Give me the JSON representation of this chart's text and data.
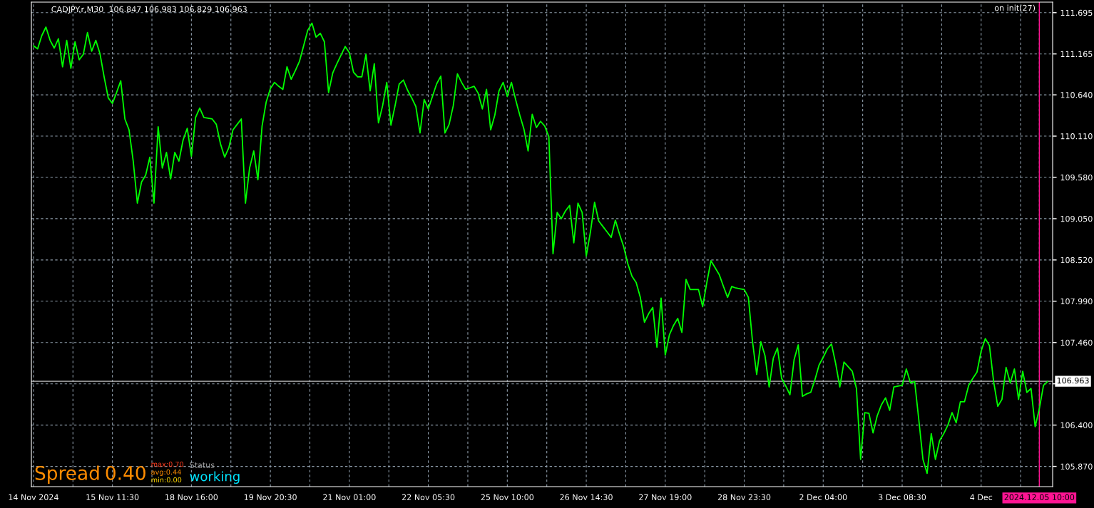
{
  "chart_data": {
    "type": "line",
    "title": "CADJPY.r,M30  106.847 106.983 106.829 106.963",
    "color": "#00ff00",
    "categories": [
      "14 Nov 2024",
      null,
      null,
      null,
      null,
      null,
      null,
      null,
      null,
      null,
      null,
      null,
      null,
      null,
      null,
      null,
      null,
      null,
      null,
      "15 Nov 11:30",
      null,
      null,
      null,
      null,
      null,
      null,
      null,
      null,
      null,
      null,
      null,
      null,
      null,
      null,
      null,
      null,
      null,
      null,
      "18 Nov 16:00",
      null,
      null,
      null,
      null,
      null,
      null,
      null,
      null,
      null,
      null,
      null,
      null,
      null,
      null,
      null,
      null,
      null,
      null,
      "19 Nov 20:30",
      null,
      null,
      null,
      null,
      null,
      null,
      null,
      null,
      null,
      null,
      null,
      null,
      null,
      null,
      null,
      null,
      null,
      null,
      "21 Nov 01:00",
      null,
      null,
      null,
      null,
      null,
      null,
      null,
      null,
      null,
      null,
      null,
      null,
      null,
      null,
      null,
      null,
      null,
      null,
      "22 Nov 05:30",
      null,
      null,
      null,
      null,
      null,
      null,
      null,
      null,
      null,
      null,
      null,
      null,
      null,
      null,
      null,
      null,
      null,
      null,
      "25 Nov 10:00",
      null,
      null,
      null,
      null,
      null,
      null,
      null,
      null,
      null,
      null,
      null,
      null,
      null,
      null,
      null,
      null,
      null,
      null,
      "26 Nov 14:30",
      null,
      null,
      null,
      null,
      null,
      null,
      null,
      null,
      null,
      null,
      null,
      null,
      null,
      null,
      null,
      null,
      null,
      null,
      "27 Nov 19:00",
      null,
      null,
      null,
      null,
      null,
      null,
      null,
      null,
      null,
      null,
      null,
      null,
      null,
      null,
      null,
      null,
      null,
      null,
      "28 Nov 23:30",
      null,
      null,
      null,
      null,
      null,
      null,
      null,
      null,
      null,
      null,
      null,
      null,
      null,
      null,
      null,
      null,
      null,
      null,
      "2 Dec 04:00",
      null,
      null,
      null,
      null,
      null,
      null,
      null,
      null,
      null,
      null,
      null,
      null,
      null,
      null,
      null,
      null,
      null,
      null,
      "3 Dec 08:30",
      null,
      null,
      null,
      null,
      null,
      null,
      null,
      null,
      null,
      null,
      null,
      null,
      null,
      null,
      null,
      null,
      null,
      null,
      "4 Dec",
      null,
      null,
      null,
      null,
      null,
      null,
      null,
      null,
      null,
      null,
      null,
      null,
      null,
      "2024.12.05 10:00",
      null,
      null
    ],
    "values": [
      111.27,
      111.23,
      111.4,
      111.51,
      111.34,
      111.24,
      111.36,
      111.0,
      111.34,
      110.98,
      111.32,
      111.09,
      111.16,
      111.44,
      111.2,
      111.34,
      111.17,
      110.87,
      110.6,
      110.53,
      110.67,
      110.82,
      110.33,
      110.19,
      109.79,
      109.25,
      109.52,
      109.61,
      109.84,
      109.25,
      110.23,
      109.7,
      109.9,
      109.56,
      109.9,
      109.79,
      110.06,
      110.21,
      109.85,
      110.35,
      110.47,
      110.35,
      110.34,
      110.33,
      110.26,
      110.01,
      109.84,
      109.96,
      110.19,
      110.26,
      110.33,
      109.25,
      109.7,
      109.92,
      109.55,
      110.24,
      110.55,
      110.72,
      110.8,
      110.75,
      110.71,
      111.0,
      110.84,
      110.95,
      111.07,
      111.27,
      111.47,
      111.56,
      111.38,
      111.43,
      111.32,
      110.67,
      110.92,
      111.04,
      111.15,
      111.26,
      111.18,
      110.93,
      110.87,
      110.87,
      111.16,
      110.69,
      111.04,
      110.28,
      110.5,
      110.8,
      110.25,
      110.5,
      110.78,
      110.83,
      110.7,
      110.6,
      110.49,
      110.15,
      110.58,
      110.46,
      110.62,
      110.78,
      110.88,
      110.15,
      110.26,
      110.5,
      110.91,
      110.8,
      110.71,
      110.73,
      110.75,
      110.66,
      110.46,
      110.71,
      110.19,
      110.38,
      110.69,
      110.8,
      110.62,
      110.8,
      110.58,
      110.38,
      110.2,
      109.92,
      110.39,
      110.22,
      110.3,
      110.24,
      110.1,
      108.6,
      109.13,
      109.05,
      109.15,
      109.22,
      108.74,
      109.25,
      109.13,
      108.57,
      108.88,
      109.26,
      109.02,
      108.95,
      108.88,
      108.81,
      109.03,
      108.85,
      108.69,
      108.47,
      108.31,
      108.23,
      108.04,
      107.72,
      107.83,
      107.91,
      107.4,
      108.03,
      107.3,
      107.56,
      107.68,
      107.77,
      107.59,
      108.27,
      108.14,
      108.14,
      108.14,
      107.92,
      108.23,
      108.51,
      108.42,
      108.33,
      108.18,
      108.04,
      108.18,
      108.16,
      108.15,
      108.14,
      108.04,
      107.47,
      107.05,
      107.47,
      107.29,
      106.89,
      107.26,
      107.39,
      107.0,
      106.9,
      106.79,
      107.24,
      107.43,
      106.77,
      106.8,
      106.82,
      106.98,
      107.17,
      107.27,
      107.38,
      107.44,
      107.19,
      106.89,
      107.21,
      107.15,
      107.09,
      106.87,
      105.96,
      106.56,
      106.55,
      106.3,
      106.52,
      106.66,
      106.75,
      106.59,
      106.89,
      106.9,
      106.91,
      107.12,
      106.94,
      106.96,
      106.47,
      105.96,
      105.78,
      106.29,
      105.96,
      106.2,
      106.29,
      106.4,
      106.56,
      106.43,
      106.7,
      106.7,
      106.91,
      107.0,
      107.08,
      107.35,
      107.51,
      107.42,
      106.96,
      106.64,
      106.73,
      107.14,
      106.94,
      107.12,
      106.73,
      107.09,
      106.82,
      106.87,
      106.38,
      106.61,
      106.91,
      106.96
    ],
    "ylim": [
      105.61,
      111.83
    ],
    "yticks": [
      {
        "value": 105.87,
        "label": "105.870"
      },
      {
        "value": 106.4,
        "label": "106.400"
      },
      {
        "value": 106.93,
        "label": null
      },
      {
        "value": 107.46,
        "label": "107.460"
      },
      {
        "value": 107.99,
        "label": "107.990"
      },
      {
        "value": 108.52,
        "label": "108.520"
      },
      {
        "value": 109.05,
        "label": "109.050"
      },
      {
        "value": 109.58,
        "label": "109.580"
      },
      {
        "value": 110.11,
        "label": "110.110"
      },
      {
        "value": 110.64,
        "label": "110.640"
      },
      111.165,
      111.695
    ],
    "grid": true,
    "ref_lines": [
      {
        "axis": "y",
        "value": 106.963,
        "label": "106.963",
        "color": "#c0c0c0"
      },
      {
        "axis": "x",
        "value": "2024.12.05 10:00",
        "color": "#ff1493"
      }
    ],
    "annotations": [
      "on init(27)",
      "Spread",
      "0.40",
      "max:0.70",
      "avg:0.44",
      "min:0.00",
      "Status",
      "working"
    ]
  }
}
